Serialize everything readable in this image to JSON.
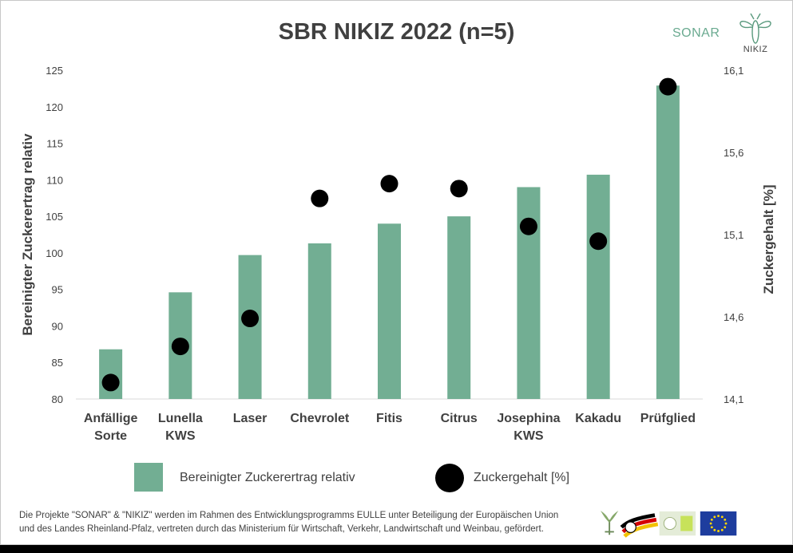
{
  "title": "SBR NIKIZ 2022 (n=5)",
  "brand": {
    "sonar": "SONAR",
    "nikiz": "NIKIZ"
  },
  "legend": {
    "bar_label": "Bereinigter Zuckerertrag relativ",
    "dot_label": "Zuckergehalt [%]"
  },
  "footer": {
    "line1": "Die Projekte \"SONAR\" & \"NIKIZ\" werden im Rahmen des Entwicklungsprogramms EULLE unter Beteiligung der Europäischen Union",
    "line2": "und des Landes Rheinland-Pfalz, vertreten durch das Ministerium für Wirtschaft, Verkehr, Landwirtschaft und Weinbau, gefördert."
  },
  "colors": {
    "bar": "#72ae93",
    "dot": "#000000",
    "text": "#404040",
    "sonar": "#6aaa90"
  },
  "chart_data": {
    "type": "bar",
    "title": "SBR NIKIZ 2022 (n=5)",
    "categories": [
      [
        "Anfällige",
        "Sorte"
      ],
      [
        "Lunella",
        "KWS"
      ],
      [
        "Laser"
      ],
      [
        "Chevrolet"
      ],
      [
        "Fitis"
      ],
      [
        "Citrus"
      ],
      [
        "Josephina",
        "KWS"
      ],
      [
        "Kakadu"
      ],
      [
        "Prüfglied"
      ]
    ],
    "ylabel": "Bereinigter Zuckerertrag relativ",
    "ylim": [
      80,
      125
    ],
    "yticks": [
      "80",
      "85",
      "90",
      "95",
      "100",
      "105",
      "110",
      "115",
      "120",
      "125"
    ],
    "y2label": "Zuckergehalt [%]",
    "y2lim": [
      14.1,
      16.1
    ],
    "y2ticks": [
      "14,1",
      "14,6",
      "15,1",
      "15,6",
      "16,1"
    ],
    "grid": false,
    "legend_position": "bottom",
    "series": [
      {
        "name": "Bereinigter Zuckerertrag relativ",
        "type": "bar",
        "axis": "left",
        "values": [
          86.8,
          94.6,
          99.7,
          101.3,
          104.0,
          105.0,
          109.0,
          110.7,
          122.9
        ]
      },
      {
        "name": "Zuckergehalt [%]",
        "type": "scatter",
        "axis": "right",
        "values": [
          14.2,
          14.42,
          14.59,
          15.32,
          15.41,
          15.38,
          15.15,
          15.06,
          16.0
        ]
      }
    ]
  }
}
